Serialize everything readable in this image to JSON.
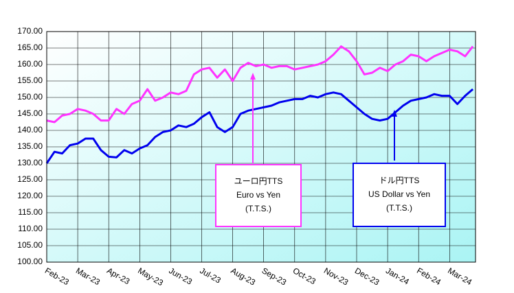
{
  "chart_data": {
    "type": "line",
    "categories": [
      "Feb-23",
      null,
      null,
      null,
      "Mar-23",
      null,
      null,
      null,
      "Apr-23",
      null,
      null,
      null,
      "May-23",
      null,
      null,
      null,
      "Jun-23",
      null,
      null,
      null,
      "Jul-23",
      null,
      null,
      null,
      "Aug-23",
      null,
      null,
      null,
      "Sep-23",
      null,
      null,
      null,
      "Oct-23",
      null,
      null,
      null,
      "Nov-23",
      null,
      null,
      null,
      "Dec-23",
      null,
      null,
      null,
      "Jan-24",
      null,
      null,
      null,
      "Feb-24",
      null,
      null,
      null,
      "Mar-24",
      null,
      null,
      null
    ],
    "series": [
      {
        "name": "Euro vs Yen",
        "label": "ユーロ円TTS",
        "note": "(T.T.S.)",
        "color": "#ff33ff",
        "values": [
          143,
          142.5,
          144.5,
          145,
          146.5,
          146,
          145,
          143,
          143,
          146.5,
          145,
          148,
          149,
          152.5,
          149,
          150,
          151.5,
          151,
          152,
          157,
          158.5,
          159,
          156,
          158.5,
          155,
          159,
          160.5,
          159.5,
          160,
          159,
          159.5,
          159.5,
          158.5,
          159,
          159.5,
          160,
          161,
          163,
          165.5,
          164,
          161,
          157,
          157.5,
          159,
          158,
          160,
          161,
          163,
          162.5,
          161,
          162.5,
          163.5,
          164.5,
          164,
          162.5,
          165.5
        ]
      },
      {
        "name": "US Dollar vs Yen",
        "label": "ドル円TTS",
        "note": "(T.T.S.)",
        "color": "#0000ee",
        "values": [
          130,
          133.5,
          133,
          135.5,
          136,
          137.5,
          137.5,
          134,
          132,
          131.8,
          134,
          133,
          134.5,
          135.5,
          138,
          139.5,
          140,
          141.5,
          141,
          142,
          144,
          145.5,
          141,
          139.5,
          141,
          145,
          146,
          146.5,
          147,
          147.5,
          148.5,
          149,
          149.5,
          149.5,
          150.5,
          150,
          151,
          151.5,
          151,
          149,
          147,
          145,
          143.5,
          143,
          143.5,
          145.5,
          147.5,
          149,
          149.5,
          150,
          151,
          150.5,
          150.5,
          148,
          150.5,
          152.5
        ]
      }
    ],
    "ylim": [
      100,
      170
    ],
    "yticks": [
      {
        "value": 100,
        "label": "100.00"
      },
      {
        "value": 105,
        "label": "105.00"
      },
      {
        "value": 110,
        "label": "110.00"
      },
      {
        "value": 115,
        "label": "115.00"
      },
      {
        "value": 120,
        "label": "120.00"
      },
      {
        "value": 125,
        "label": "125.00"
      },
      {
        "value": 130,
        "label": "130.00"
      },
      {
        "value": 135,
        "label": "135.00"
      },
      {
        "value": 140,
        "label": "140.00"
      },
      {
        "value": 145,
        "label": "145.00"
      },
      {
        "value": 150,
        "label": "150.00"
      },
      {
        "value": 155,
        "label": "155.00"
      },
      {
        "value": 160,
        "label": "160.00"
      },
      {
        "value": 165,
        "label": "165.00"
      },
      {
        "value": 170,
        "label": "170.00"
      }
    ],
    "grid": true
  }
}
